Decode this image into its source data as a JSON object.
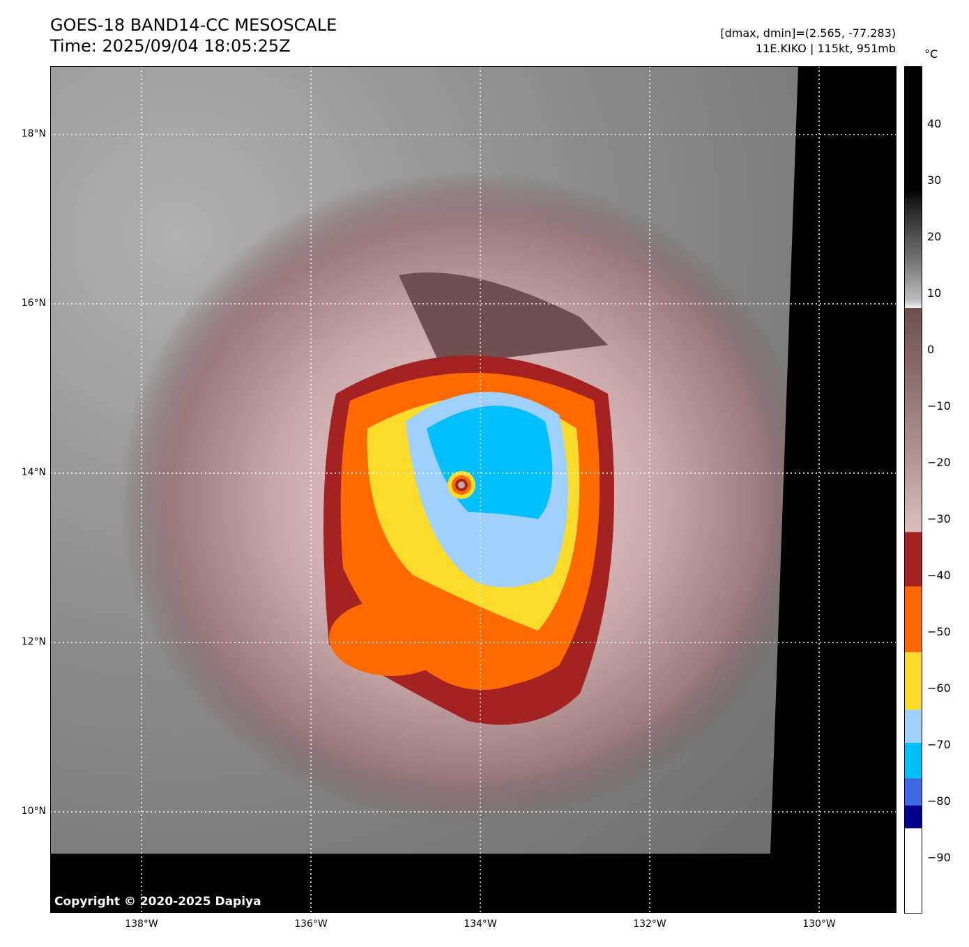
{
  "header": {
    "title": "GOES-18 BAND14-CC MESOSCALE",
    "time": "Time: 2025/09/04 18:05:25Z",
    "range_text": "[dmax, dmin]=(2.565, -77.283)",
    "storm_text": "11E.KIKO | 115kt, 951mb"
  },
  "map": {
    "lat_labels": [
      "18°N",
      "16°N",
      "14°N",
      "12°N",
      "10°N"
    ],
    "lon_labels": [
      "138°W",
      "136°W",
      "134°W",
      "132°W",
      "130°W"
    ],
    "copyright": "Copyright © 2020-2025 Dapiya"
  },
  "colorbar": {
    "unit": "°C",
    "ticks": [
      "40",
      "30",
      "20",
      "10",
      "0",
      "−10",
      "−20",
      "−30",
      "−40",
      "−50",
      "−60",
      "−70",
      "−80",
      "−90"
    ],
    "colors": {
      "red": "#a52222",
      "orange": "#ff6a00",
      "yellow": "#fcdc2a",
      "lightblue": "#9fd0ff",
      "cyan": "#00bfff",
      "blue": "#4169e1",
      "navy": "#00008b"
    }
  }
}
